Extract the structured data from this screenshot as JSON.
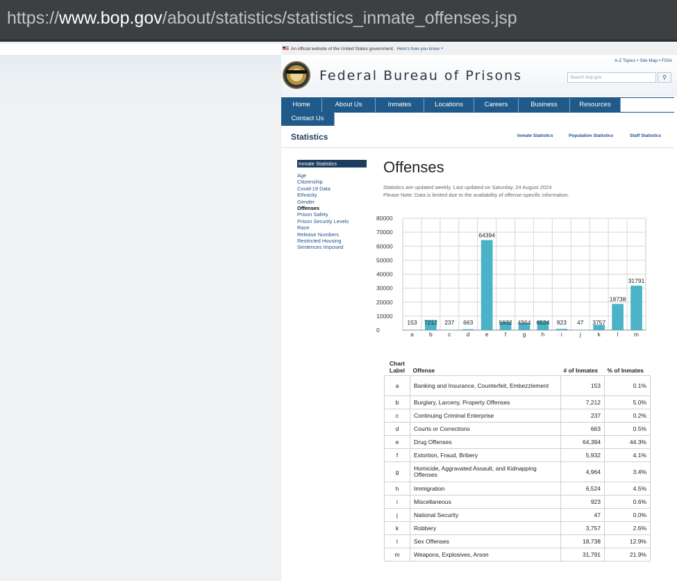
{
  "browser": {
    "url_prefix": "https://",
    "url_domain": "www.bop.gov",
    "url_path": "/about/statistics/statistics_inmate_offenses.jsp"
  },
  "gov_banner": {
    "text": "An official website of the United States government.",
    "link": "Here's how you know"
  },
  "header": {
    "site_title": "Federal Bureau of Prisons",
    "top_links": "A-Z Topics • Site Map • FOIA",
    "search_placeholder": "Search bop.gov"
  },
  "nav": {
    "items": [
      "Home",
      "About Us",
      "Inmates",
      "Locations",
      "Careers",
      "Business",
      "Resources",
      "Contact Us"
    ]
  },
  "section": {
    "title": "Statistics",
    "links": [
      "Inmate Statistics",
      "Population Statistics",
      "Staff Statistics"
    ]
  },
  "sidebar": {
    "heading": "Inmate Statistics",
    "items": [
      "Age",
      "Citizenship",
      "Covid-19 Data",
      "Ethnicity",
      "Gender",
      "Offenses",
      "Prison Safety",
      "Prison Security Levels",
      "Race",
      "Release Numbers",
      "Restricted Housing",
      "Sentences Imposed"
    ],
    "active_index": 5
  },
  "main": {
    "title": "Offenses",
    "note_line1": "Statistics are updated weekly. Last updated on Saturday, 24 August 2024",
    "note_line2": "Please Note: Data is limited due to the availability of offense-specific information."
  },
  "chart_data": {
    "type": "bar",
    "categories": [
      "a",
      "b",
      "c",
      "d",
      "e",
      "f",
      "g",
      "h",
      "i",
      "j",
      "k",
      "l",
      "m"
    ],
    "values": [
      153,
      7212,
      237,
      663,
      64394,
      5932,
      4964,
      6524,
      923,
      47,
      3757,
      18738,
      31791
    ],
    "ylim": [
      0,
      80000
    ],
    "yticks": [
      0,
      10000,
      20000,
      30000,
      40000,
      50000,
      60000,
      70000,
      80000
    ],
    "grid": true,
    "bar_color": "#4bb3c8"
  },
  "table": {
    "headers": [
      "Chart Label",
      "Offense",
      "# of Inmates",
      "% of Inmates"
    ],
    "rows": [
      [
        "a",
        "Banking and Insurance, Counterfeit, Embezzlement",
        "153",
        "0.1%"
      ],
      [
        "b",
        "Burglary, Larceny, Property Offenses",
        "7,212",
        "5.0%"
      ],
      [
        "c",
        "Continuing Criminal Enterprise",
        "237",
        "0.2%"
      ],
      [
        "d",
        "Courts or Corrections",
        "663",
        "0.5%"
      ],
      [
        "e",
        "Drug Offenses",
        "64,394",
        "44.3%"
      ],
      [
        "f",
        "Extortion, Fraud, Bribery",
        "5,932",
        "4.1%"
      ],
      [
        "g",
        "Homicide, Aggravated Assault, and Kidnapping Offenses",
        "4,964",
        "3.4%"
      ],
      [
        "h",
        "Immigration",
        "6,524",
        "4.5%"
      ],
      [
        "i",
        "Miscellaneous",
        "923",
        "0.6%"
      ],
      [
        "j",
        "National Security",
        "47",
        "0.0%"
      ],
      [
        "k",
        "Robbery",
        "3,757",
        "2.6%"
      ],
      [
        "l",
        "Sex Offenses",
        "18,738",
        "12.9%"
      ],
      [
        "m",
        "Weapons, Explosives, Arson",
        "31,791",
        "21.9%"
      ]
    ]
  }
}
